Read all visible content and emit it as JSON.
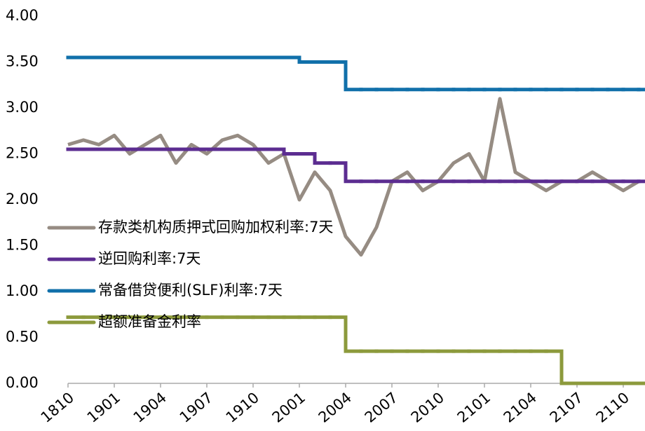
{
  "chart_data": {
    "type": "line",
    "categories": [
      "1810",
      null,
      null,
      "1901",
      null,
      null,
      "1904",
      null,
      null,
      "1907",
      null,
      null,
      "1910",
      null,
      null,
      "2001",
      null,
      null,
      "2004",
      null,
      null,
      "2007",
      null,
      null,
      "2010",
      null,
      null,
      "2101",
      null,
      null,
      "2104",
      null,
      null,
      "2107",
      null,
      null,
      "2110",
      null
    ],
    "series": [
      {
        "name": "存款类机构质押式回购加权利率:7天",
        "color": "#968c83",
        "step": false,
        "values": [
          2.6,
          2.65,
          2.6,
          2.7,
          2.5,
          2.6,
          2.7,
          2.4,
          2.6,
          2.5,
          2.65,
          2.7,
          2.6,
          2.4,
          2.5,
          2.0,
          2.3,
          2.1,
          1.6,
          1.4,
          1.7,
          2.2,
          2.3,
          2.1,
          2.2,
          2.4,
          2.5,
          2.2,
          3.1,
          2.3,
          2.2,
          2.1,
          2.2,
          2.2,
          2.3,
          2.2,
          2.1,
          2.2
        ]
      },
      {
        "name": "逆回购利率:7天",
        "color": "#5c2d91",
        "step": true,
        "values": [
          2.55,
          2.55,
          2.55,
          2.55,
          2.55,
          2.55,
          2.55,
          2.55,
          2.55,
          2.55,
          2.55,
          2.55,
          2.55,
          2.55,
          2.5,
          2.5,
          2.4,
          2.4,
          2.2,
          2.2,
          2.2,
          2.2,
          2.2,
          2.2,
          2.2,
          2.2,
          2.2,
          2.2,
          2.2,
          2.2,
          2.2,
          2.2,
          2.2,
          2.2,
          2.2,
          2.2,
          2.2,
          2.2
        ]
      },
      {
        "name": "常备借贷便利(SLF)利率:7天",
        "color": "#1170aa",
        "step": true,
        "values": [
          3.55,
          3.55,
          3.55,
          3.55,
          3.55,
          3.55,
          3.55,
          3.55,
          3.55,
          3.55,
          3.55,
          3.55,
          3.55,
          3.55,
          3.55,
          3.5,
          3.5,
          3.5,
          3.2,
          3.2,
          3.2,
          3.2,
          3.2,
          3.2,
          3.2,
          3.2,
          3.2,
          3.2,
          3.2,
          3.2,
          3.2,
          3.2,
          3.2,
          3.2,
          3.2,
          3.2,
          3.2,
          3.2
        ]
      },
      {
        "name": "超额准备金利率",
        "color": "#8c9a3c",
        "step": true,
        "values": [
          0.72,
          0.72,
          0.72,
          0.72,
          0.72,
          0.72,
          0.72,
          0.72,
          0.72,
          0.72,
          0.72,
          0.72,
          0.72,
          0.72,
          0.72,
          0.72,
          0.72,
          0.72,
          0.35,
          0.35,
          0.35,
          0.35,
          0.35,
          0.35,
          0.35,
          0.35,
          0.35,
          0.35,
          0.35,
          0.35,
          0.35,
          0.35,
          0,
          0,
          0,
          0,
          0,
          0
        ]
      }
    ],
    "ylim": [
      0,
      4
    ],
    "yticks": [
      {
        "value": 0,
        "label": "0.00"
      },
      {
        "value": 0.5,
        "label": "0.50"
      },
      {
        "value": 1,
        "label": "1.00"
      },
      {
        "value": 1.5,
        "label": "1.50"
      },
      {
        "value": 2,
        "label": "2.00"
      },
      {
        "value": 2.5,
        "label": "2.50"
      },
      {
        "value": 3,
        "label": "3.00"
      },
      {
        "value": 3.5,
        "label": "3.50"
      },
      {
        "value": 4,
        "label": "4.00"
      }
    ],
    "grid": false,
    "legend": "center-left"
  }
}
